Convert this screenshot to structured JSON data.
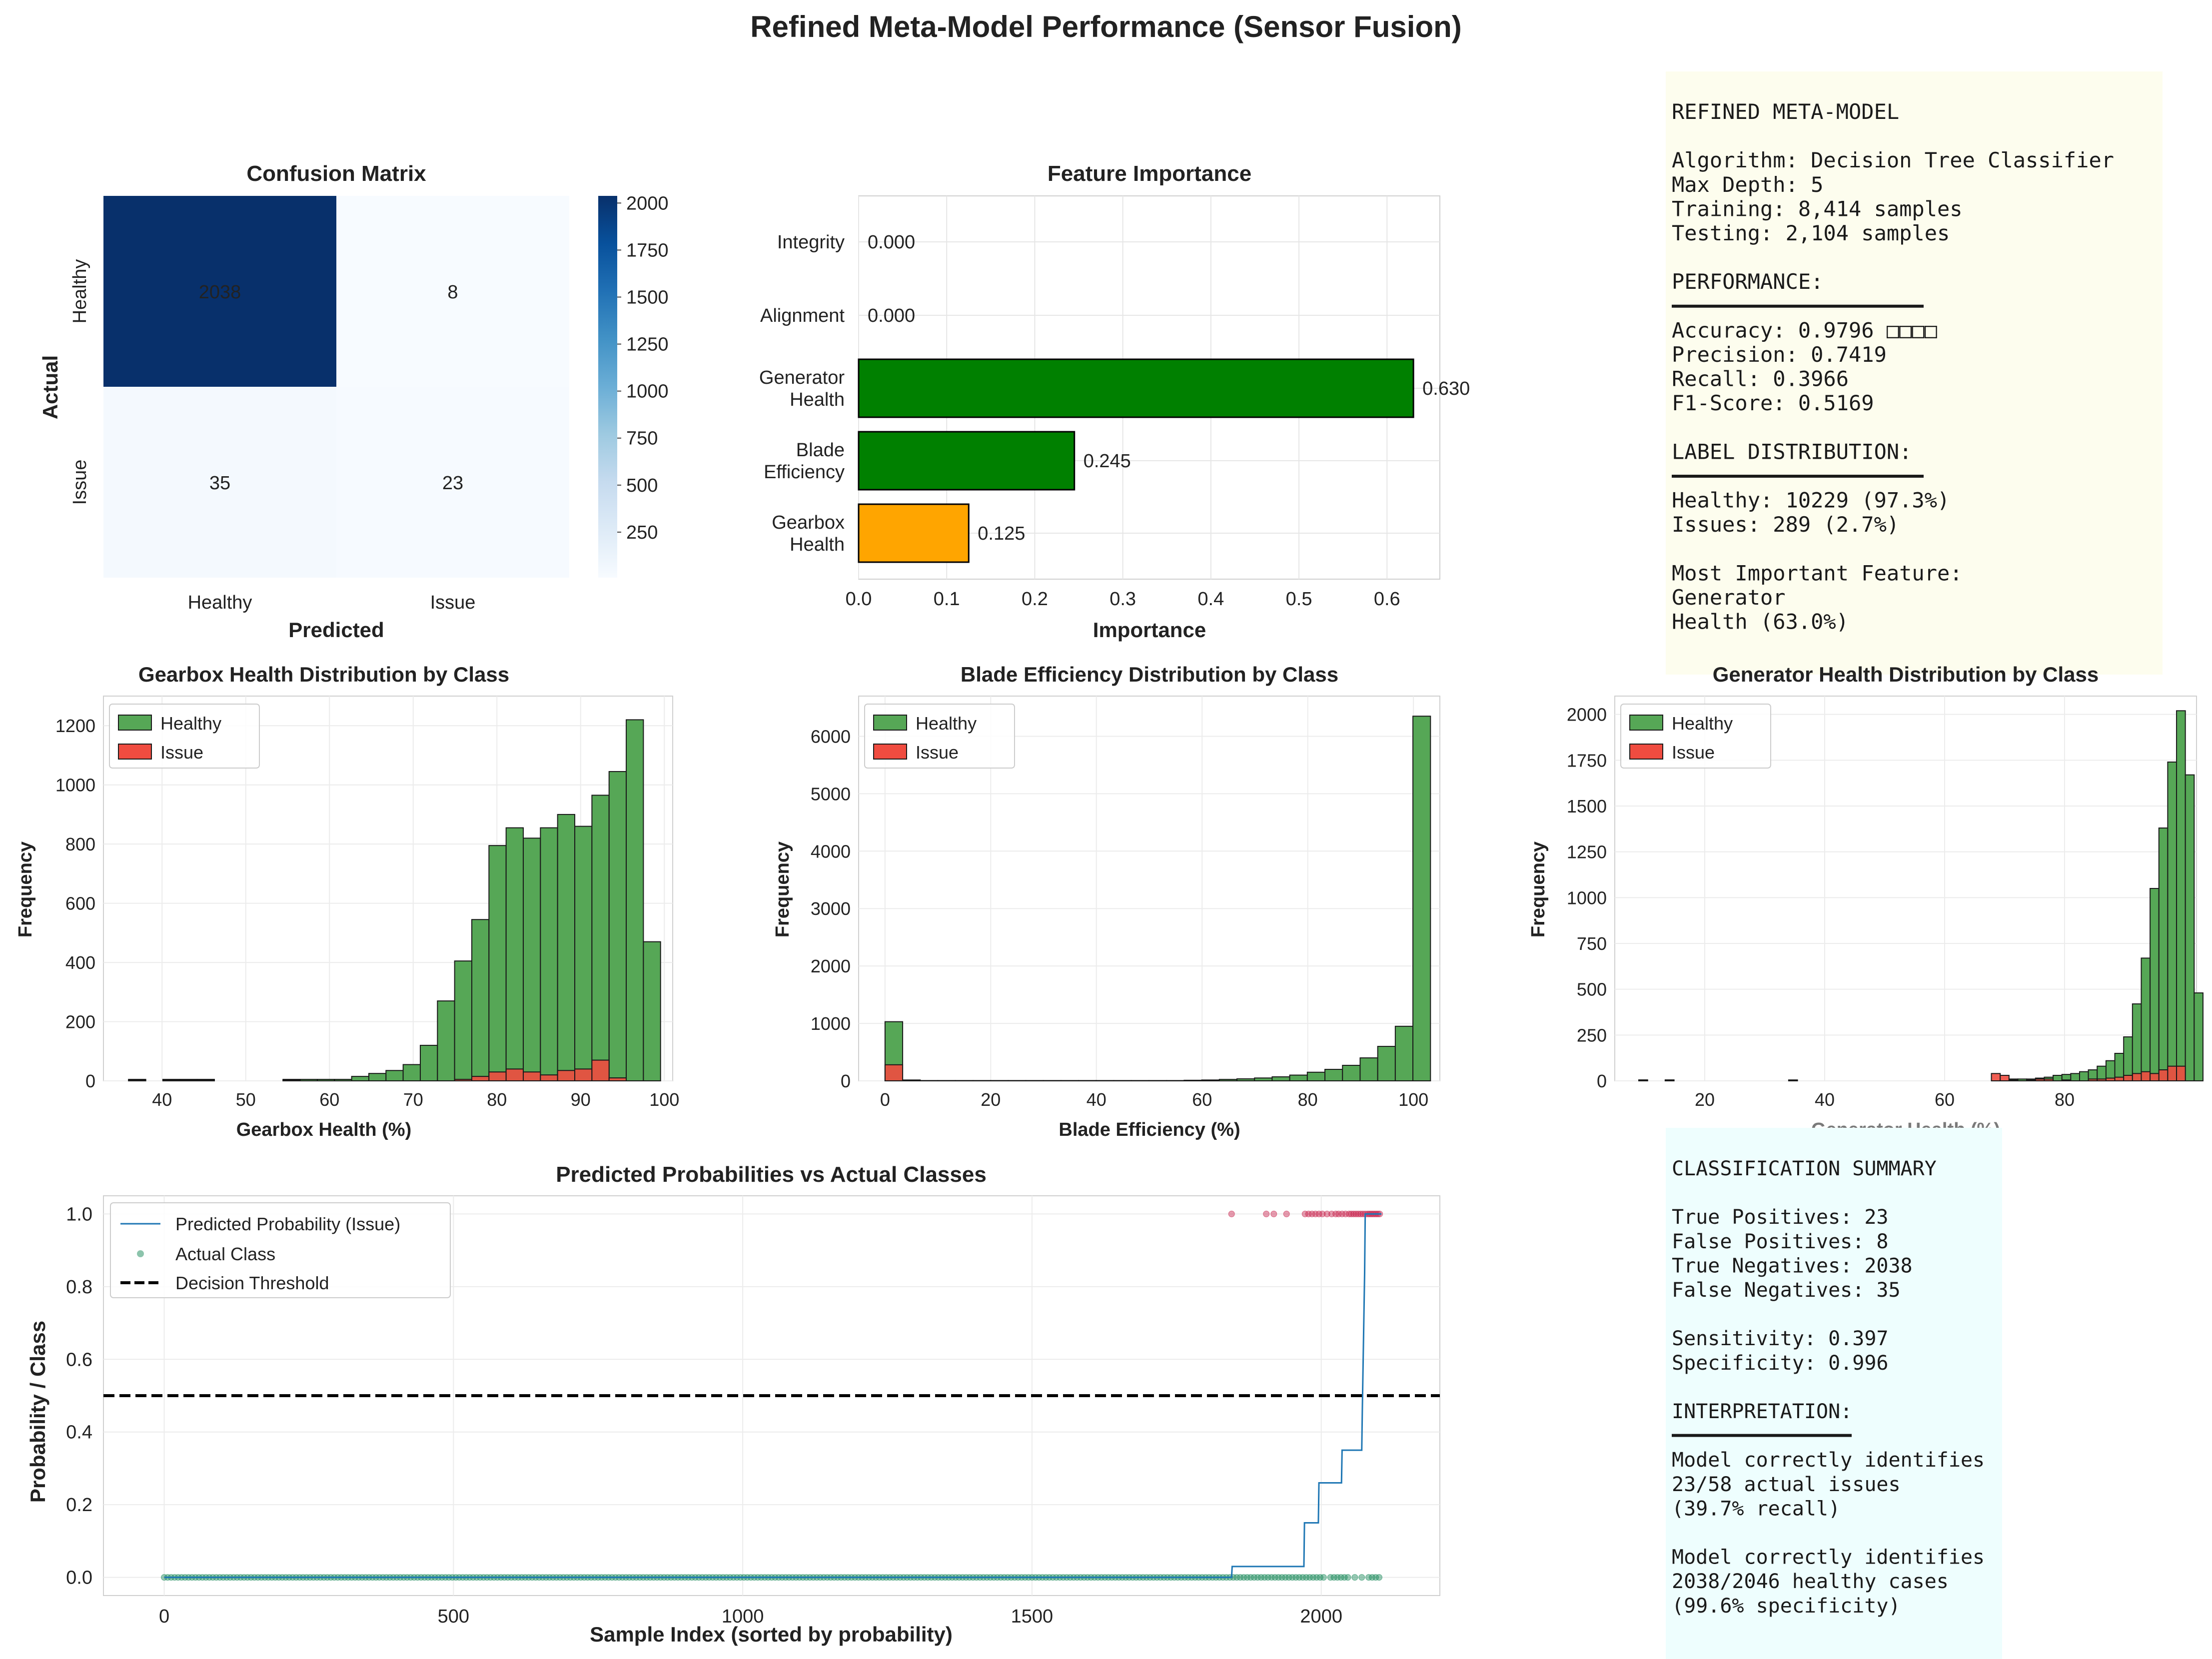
{
  "figure_title": "Refined Meta-Model Performance (Sensor Fusion)",
  "colors": {
    "healthy": "#56a756",
    "issue": "#f04c40",
    "green_bar": "#008000",
    "orange_bar": "#ffa500",
    "line": "#1f77b4",
    "actual_healthy": "#1a8a5a",
    "actual_issue": "#c8244d",
    "panel1_bg": "#fdfdee",
    "panel2_bg": "#eefefe"
  },
  "chart_data": [
    {
      "type": "heatmap",
      "title": "Confusion Matrix",
      "xlabel": "Predicted",
      "ylabel": "Actual",
      "x_categories": [
        "Healthy",
        "Issue"
      ],
      "y_categories": [
        "Healthy",
        "Issue"
      ],
      "values": [
        [
          2038,
          8
        ],
        [
          35,
          23
        ]
      ],
      "colorbar": {
        "ticks": [
          250,
          500,
          750,
          1000,
          1250,
          1500,
          1750,
          2000
        ],
        "range": [
          8,
          2038
        ],
        "colormap": "Blues"
      }
    },
    {
      "type": "bar",
      "orientation": "horizontal",
      "title": "Feature Importance",
      "xlabel": "Importance",
      "categories": [
        "Integrity",
        "Alignment",
        "Generator\nHealth",
        "Blade\nEfficiency",
        "Gearbox\nHealth"
      ],
      "values": [
        0.0,
        0.0,
        0.63,
        0.245,
        0.125
      ],
      "value_labels": [
        "0.000",
        "0.000",
        "0.630",
        "0.245",
        "0.125"
      ],
      "bar_colors": [
        "#008000",
        "#008000",
        "#008000",
        "#008000",
        "#ffa500"
      ],
      "xlim": [
        0,
        0.66
      ],
      "xticks": [
        0.0,
        0.1,
        0.2,
        0.3,
        0.4,
        0.5,
        0.6
      ],
      "xtick_labels": [
        "0.0",
        "0.1",
        "0.2",
        "0.3",
        "0.4",
        "0.5",
        "0.6"
      ]
    },
    {
      "type": "histogram",
      "title": "Gearbox Health Distribution by Class",
      "xlabel": "Gearbox Health (%)",
      "ylabel": "Frequency",
      "legend": [
        "Healthy",
        "Issue"
      ],
      "legend_position": "top-left",
      "bin_start": 36,
      "bin_width": 2.05,
      "healthy_counts": [
        5,
        0,
        5,
        5,
        5,
        0,
        0,
        0,
        0,
        5,
        5,
        5,
        5,
        15,
        25,
        35,
        55,
        120,
        270,
        405,
        545,
        795,
        855,
        820,
        855,
        900,
        860,
        965,
        1045,
        1220,
        470
      ],
      "issue_counts": [
        3,
        0,
        3,
        3,
        3,
        0,
        0,
        0,
        0,
        3,
        0,
        0,
        0,
        0,
        0,
        0,
        0,
        0,
        0,
        5,
        15,
        30,
        40,
        30,
        20,
        35,
        40,
        70,
        10,
        0,
        0
      ],
      "xlim": [
        33,
        101
      ],
      "ylim": [
        0,
        1300
      ],
      "xticks": [
        40,
        50,
        60,
        70,
        80,
        90,
        100
      ],
      "yticks": [
        0,
        200,
        400,
        600,
        800,
        1000,
        1200
      ]
    },
    {
      "type": "histogram",
      "title": "Blade Efficiency Distribution by Class",
      "xlabel": "Blade Efficiency (%)",
      "ylabel": "Frequency",
      "legend": [
        "Healthy",
        "Issue"
      ],
      "legend_position": "top-left",
      "bin_start": 0,
      "bin_width": 3.33,
      "healthy_counts": [
        1030,
        15,
        5,
        5,
        5,
        5,
        5,
        5,
        5,
        5,
        5,
        5,
        5,
        5,
        5,
        5,
        5,
        10,
        15,
        25,
        35,
        50,
        70,
        100,
        150,
        200,
        270,
        400,
        600,
        950,
        6350
      ],
      "issue_counts": [
        280,
        0,
        0,
        0,
        0,
        0,
        0,
        0,
        0,
        0,
        0,
        0,
        0,
        0,
        0,
        0,
        0,
        0,
        0,
        0,
        0,
        0,
        0,
        0,
        0,
        0,
        0,
        0,
        0,
        0,
        0
      ],
      "xlim": [
        -5,
        105
      ],
      "ylim": [
        0,
        6700
      ],
      "xticks": [
        0,
        20,
        40,
        60,
        80,
        100
      ],
      "yticks": [
        0,
        1000,
        2000,
        3000,
        4000,
        5000,
        6000
      ]
    },
    {
      "type": "histogram",
      "title": "Generator Health Distribution by Class",
      "xlabel": "Generator Health (%)",
      "ylabel": "Frequency",
      "legend": [
        "Healthy",
        "Issue"
      ],
      "legend_position": "top-left",
      "bin_start": 9,
      "bin_width": 1.47,
      "healthy_counts": [
        5,
        0,
        0,
        5,
        0,
        0,
        0,
        0,
        0,
        0,
        0,
        0,
        0,
        0,
        0,
        0,
        0,
        0,
        0,
        0,
        0,
        0,
        0,
        0,
        0,
        0,
        0,
        0,
        0,
        0,
        0,
        0,
        0,
        0,
        0,
        0,
        0,
        0,
        0,
        0,
        0,
        0,
        10,
        10,
        10,
        15,
        20,
        30,
        35,
        40,
        50,
        60,
        80,
        110,
        150,
        240,
        420,
        670,
        1050,
        1380,
        1740,
        2020,
        1670,
        480
      ],
      "issue_counts": [
        5,
        0,
        0,
        5,
        0,
        0,
        0,
        0,
        0,
        0,
        0,
        0,
        0,
        0,
        0,
        0,
        0,
        5,
        0,
        0,
        0,
        0,
        0,
        0,
        0,
        0,
        0,
        0,
        0,
        0,
        0,
        0,
        0,
        0,
        0,
        0,
        0,
        0,
        0,
        0,
        40,
        30,
        5,
        0,
        5,
        10,
        10,
        0,
        5,
        0,
        0,
        10,
        10,
        15,
        20,
        30,
        40,
        50,
        40,
        60,
        80,
        80,
        0,
        0
      ],
      "xlim": [
        5,
        102
      ],
      "ylim": [
        0,
        2100
      ],
      "xticks": [
        20,
        40,
        60,
        80
      ],
      "yticks": [
        0,
        250,
        500,
        750,
        1000,
        1250,
        1500,
        1750,
        2000
      ]
    },
    {
      "type": "line",
      "title": "Predicted Probabilities vs Actual Classes",
      "xlabel": "Sample Index (sorted by probability)",
      "ylabel": "Probability / Class",
      "series": [
        {
          "name": "Predicted Probability (Issue)",
          "kind": "step",
          "x": [
            0,
            1845,
            1846,
            1970,
            1971,
            1995,
            1996,
            2035,
            2036,
            2070,
            2071,
            2075,
            2076,
            2104
          ],
          "y": [
            0.0,
            0.0,
            0.03,
            0.03,
            0.15,
            0.15,
            0.26,
            0.26,
            0.35,
            0.35,
            0.46,
            0.84,
            1.0,
            1.0
          ]
        },
        {
          "name": "Actual Class",
          "kind": "scatter",
          "healthy_x_range": [
            0,
            2104
          ],
          "issue_x": [
            1845,
            1905,
            1918,
            1940,
            1972,
            1978,
            1984,
            1990,
            1996,
            2002,
            2010,
            2018,
            2025,
            2030,
            2036,
            2042,
            2048,
            2052,
            2056,
            2060,
            2064,
            2068,
            2072,
            2076,
            2080,
            2083,
            2086,
            2089,
            2092,
            2095,
            2098,
            2101
          ]
        },
        {
          "name": "Decision Threshold",
          "kind": "hline",
          "y": 0.5
        }
      ],
      "legend_position": "top-left",
      "xlim": [
        -105,
        2205
      ],
      "ylim": [
        -0.05,
        1.05
      ],
      "xticks": [
        0,
        500,
        1000,
        1500,
        2000
      ],
      "yticks": [
        0.0,
        0.2,
        0.4,
        0.6,
        0.8,
        1.0
      ],
      "ytick_labels": [
        "0.0",
        "0.2",
        "0.4",
        "0.6",
        "0.8",
        "1.0"
      ]
    }
  ],
  "panel_model_lines": [
    "REFINED META-MODEL",
    "",
    "Algorithm: Decision Tree Classifier",
    "Max Depth: 5",
    "Training: 8,414 samples",
    "Testing:  2,104 samples",
    "",
    "PERFORMANCE:",
    "━━━━━━━━━━━━━━━━━━━━",
    "Accuracy:  0.9796 □□□□",
    "Precision: 0.7419",
    "Recall:    0.3966",
    "F1-Score:  0.5169",
    "",
    "LABEL DISTRIBUTION:",
    "━━━━━━━━━━━━━━━━━━━━",
    "Healthy:   10229 (97.3%)",
    "Issues:      289 (2.7%)",
    "",
    "Most Important Feature:",
    "Generator",
    "Health (63.0%)"
  ],
  "panel_summary_lines": [
    "CLASSIFICATION SUMMARY",
    "",
    "True Positives:    23",
    "False Positives:    8",
    "True Negatives:  2038",
    "False Negatives:   35",
    "",
    "Sensitivity: 0.397",
    "Specificity: 0.996",
    "",
    "INTERPRETATION:",
    "━━━━━━━━━━━━━━━",
    "Model correctly identifies",
    "23/58 actual issues",
    "(39.7% recall)",
    "",
    "Model correctly identifies",
    "2038/2046 healthy cases",
    "(99.6% specificity)"
  ]
}
